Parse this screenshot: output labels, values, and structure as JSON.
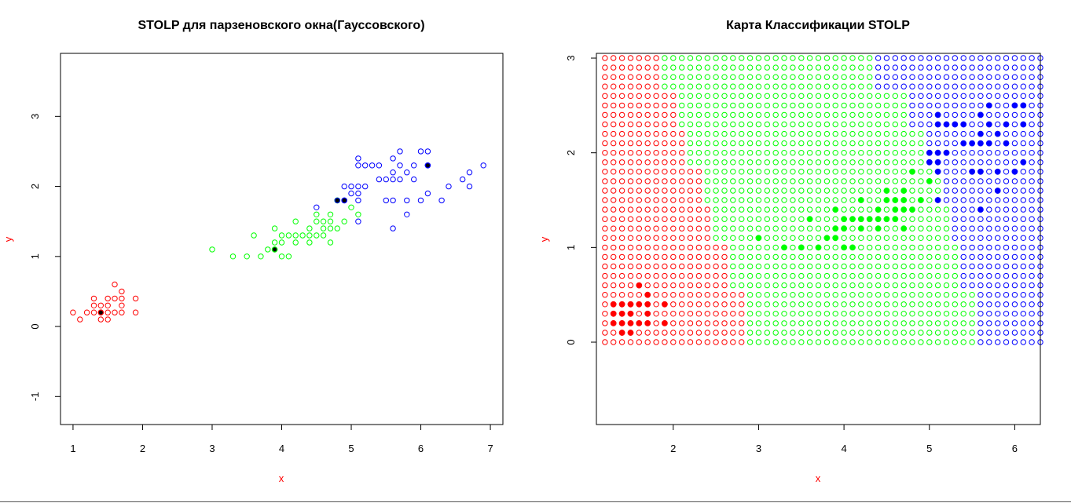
{
  "colors": {
    "setosa": "#ff0000",
    "versicolor": "#00ff00",
    "virginica": "#0000ff",
    "axis_label": "#ff0000"
  },
  "chart_data": [
    {
      "type": "scatter",
      "title": "STOLP для парзеновского окна(Гауссовского)",
      "xlabel": "x",
      "ylabel": "y",
      "xlim": [
        0.82,
        7.18
      ],
      "ylim": [
        -1.4,
        3.9
      ],
      "xticks": [
        1,
        2,
        3,
        4,
        5,
        6,
        7
      ],
      "yticks": [
        -1,
        0,
        1,
        2,
        3
      ],
      "series": [
        {
          "class": "setosa",
          "points": [
            [
              1.0,
              0.2
            ],
            [
              1.1,
              0.1
            ],
            [
              1.2,
              0.2
            ],
            [
              1.3,
              0.2
            ],
            [
              1.3,
              0.3
            ],
            [
              1.3,
              0.4
            ],
            [
              1.4,
              0.1
            ],
            [
              1.4,
              0.2
            ],
            [
              1.4,
              0.3
            ],
            [
              1.5,
              0.1
            ],
            [
              1.5,
              0.2
            ],
            [
              1.5,
              0.3
            ],
            [
              1.5,
              0.4
            ],
            [
              1.6,
              0.2
            ],
            [
              1.6,
              0.4
            ],
            [
              1.6,
              0.6
            ],
            [
              1.7,
              0.2
            ],
            [
              1.7,
              0.3
            ],
            [
              1.7,
              0.4
            ],
            [
              1.7,
              0.5
            ],
            [
              1.9,
              0.2
            ],
            [
              1.9,
              0.4
            ]
          ],
          "prototypes": [
            [
              1.4,
              0.2
            ]
          ]
        },
        {
          "class": "versicolor",
          "points": [
            [
              3.0,
              1.1
            ],
            [
              3.3,
              1.0
            ],
            [
              3.5,
              1.0
            ],
            [
              3.6,
              1.3
            ],
            [
              3.7,
              1.0
            ],
            [
              3.8,
              1.1
            ],
            [
              3.9,
              1.1
            ],
            [
              3.9,
              1.2
            ],
            [
              3.9,
              1.4
            ],
            [
              4.0,
              1.0
            ],
            [
              4.0,
              1.2
            ],
            [
              4.0,
              1.3
            ],
            [
              4.1,
              1.0
            ],
            [
              4.1,
              1.3
            ],
            [
              4.2,
              1.2
            ],
            [
              4.2,
              1.3
            ],
            [
              4.2,
              1.5
            ],
            [
              4.3,
              1.3
            ],
            [
              4.4,
              1.2
            ],
            [
              4.4,
              1.3
            ],
            [
              4.4,
              1.4
            ],
            [
              4.5,
              1.3
            ],
            [
              4.5,
              1.5
            ],
            [
              4.5,
              1.6
            ],
            [
              4.6,
              1.3
            ],
            [
              4.6,
              1.4
            ],
            [
              4.6,
              1.5
            ],
            [
              4.7,
              1.2
            ],
            [
              4.7,
              1.4
            ],
            [
              4.7,
              1.5
            ],
            [
              4.7,
              1.6
            ],
            [
              4.8,
              1.4
            ],
            [
              4.8,
              1.8
            ],
            [
              4.9,
              1.5
            ],
            [
              5.0,
              1.7
            ],
            [
              5.1,
              1.6
            ]
          ],
          "prototypes": [
            [
              3.9,
              1.1
            ],
            [
              4.8,
              1.8
            ]
          ]
        },
        {
          "class": "virginica",
          "points": [
            [
              4.5,
              1.7
            ],
            [
              4.8,
              1.8
            ],
            [
              4.9,
              1.8
            ],
            [
              4.9,
              2.0
            ],
            [
              5.0,
              1.9
            ],
            [
              5.0,
              2.0
            ],
            [
              5.1,
              1.5
            ],
            [
              5.1,
              1.8
            ],
            [
              5.1,
              1.9
            ],
            [
              5.1,
              2.0
            ],
            [
              5.1,
              2.3
            ],
            [
              5.1,
              2.4
            ],
            [
              5.2,
              2.0
            ],
            [
              5.2,
              2.3
            ],
            [
              5.3,
              2.3
            ],
            [
              5.4,
              2.1
            ],
            [
              5.4,
              2.3
            ],
            [
              5.5,
              1.8
            ],
            [
              5.5,
              2.1
            ],
            [
              5.6,
              1.4
            ],
            [
              5.6,
              1.8
            ],
            [
              5.6,
              2.1
            ],
            [
              5.6,
              2.2
            ],
            [
              5.6,
              2.4
            ],
            [
              5.7,
              2.1
            ],
            [
              5.7,
              2.3
            ],
            [
              5.7,
              2.5
            ],
            [
              5.8,
              1.6
            ],
            [
              5.8,
              1.8
            ],
            [
              5.8,
              2.2
            ],
            [
              5.9,
              2.1
            ],
            [
              5.9,
              2.3
            ],
            [
              6.0,
              1.8
            ],
            [
              6.0,
              2.5
            ],
            [
              6.1,
              1.9
            ],
            [
              6.1,
              2.3
            ],
            [
              6.1,
              2.5
            ],
            [
              6.3,
              1.8
            ],
            [
              6.4,
              2.0
            ],
            [
              6.6,
              2.1
            ],
            [
              6.7,
              2.0
            ],
            [
              6.7,
              2.2
            ],
            [
              6.9,
              2.3
            ]
          ],
          "prototypes": [
            [
              4.9,
              1.8
            ],
            [
              6.1,
              2.3
            ]
          ]
        }
      ]
    },
    {
      "type": "scatter",
      "title": "Карта Классификации STOLP",
      "xlabel": "x",
      "ylabel": "y",
      "xlim": [
        1.1,
        6.3
      ],
      "ylim": [
        -0.87,
        3.05
      ],
      "xticks": [
        2,
        3,
        4,
        5,
        6
      ],
      "yticks": [
        0,
        1,
        2,
        3
      ],
      "grid": {
        "x_from": 1.2,
        "x_to": 6.3,
        "y_from": 0.0,
        "y_to": 3.0,
        "step": 0.1
      },
      "class_boundaries": [
        {
          "y_max": 0.5,
          "setosa_below": 2.9,
          "virginica_from": 5.6
        },
        {
          "y_max": 1.0,
          "setosa_below": 2.7,
          "virginica_from": 5.4
        },
        {
          "y_max": 1.4,
          "setosa_below": 2.5,
          "virginica_from": 5.3
        },
        {
          "y_max": 1.8,
          "setosa_below": 2.4,
          "virginica_from": 5.2
        },
        {
          "y_max": 2.2,
          "setosa_below": 2.2,
          "virginica_from": 5.0
        },
        {
          "y_max": 2.6,
          "setosa_below": 2.1,
          "virginica_from": 4.8
        },
        {
          "y_max": 3.0,
          "setosa_below": 1.9,
          "virginica_from": 4.4
        }
      ],
      "training_points": [
        {
          "class": "setosa",
          "points": [
            [
              1.3,
              0.2
            ],
            [
              1.3,
              0.3
            ],
            [
              1.3,
              0.4
            ],
            [
              1.4,
              0.1
            ],
            [
              1.4,
              0.2
            ],
            [
              1.4,
              0.3
            ],
            [
              1.4,
              0.4
            ],
            [
              1.5,
              0.1
            ],
            [
              1.5,
              0.2
            ],
            [
              1.5,
              0.3
            ],
            [
              1.5,
              0.4
            ],
            [
              1.6,
              0.2
            ],
            [
              1.6,
              0.4
            ],
            [
              1.6,
              0.6
            ],
            [
              1.7,
              0.2
            ],
            [
              1.7,
              0.3
            ],
            [
              1.7,
              0.4
            ],
            [
              1.7,
              0.5
            ],
            [
              1.9,
              0.2
            ],
            [
              1.9,
              0.4
            ]
          ]
        },
        {
          "class": "versicolor",
          "points": [
            [
              3.0,
              1.1
            ],
            [
              3.3,
              1.0
            ],
            [
              3.5,
              1.0
            ],
            [
              3.6,
              1.3
            ],
            [
              3.7,
              1.0
            ],
            [
              3.8,
              1.1
            ],
            [
              3.9,
              1.1
            ],
            [
              3.9,
              1.2
            ],
            [
              3.9,
              1.4
            ],
            [
              4.0,
              1.0
            ],
            [
              4.0,
              1.2
            ],
            [
              4.0,
              1.3
            ],
            [
              4.1,
              1.0
            ],
            [
              4.1,
              1.3
            ],
            [
              4.2,
              1.2
            ],
            [
              4.2,
              1.3
            ],
            [
              4.2,
              1.5
            ],
            [
              4.3,
              1.3
            ],
            [
              4.4,
              1.2
            ],
            [
              4.4,
              1.3
            ],
            [
              4.4,
              1.4
            ],
            [
              4.5,
              1.3
            ],
            [
              4.5,
              1.5
            ],
            [
              4.5,
              1.6
            ],
            [
              4.6,
              1.3
            ],
            [
              4.6,
              1.4
            ],
            [
              4.6,
              1.5
            ],
            [
              4.7,
              1.2
            ],
            [
              4.7,
              1.4
            ],
            [
              4.7,
              1.5
            ],
            [
              4.7,
              1.6
            ],
            [
              4.8,
              1.4
            ],
            [
              4.8,
              1.8
            ],
            [
              4.9,
              1.5
            ],
            [
              5.0,
              1.7
            ]
          ]
        },
        {
          "class": "virginica",
          "points": [
            [
              5.0,
              1.9
            ],
            [
              5.0,
              2.0
            ],
            [
              5.1,
              1.5
            ],
            [
              5.1,
              1.8
            ],
            [
              5.1,
              1.9
            ],
            [
              5.1,
              2.0
            ],
            [
              5.1,
              2.3
            ],
            [
              5.1,
              2.4
            ],
            [
              5.2,
              2.0
            ],
            [
              5.2,
              2.3
            ],
            [
              5.3,
              2.3
            ],
            [
              5.4,
              2.1
            ],
            [
              5.4,
              2.3
            ],
            [
              5.5,
              1.8
            ],
            [
              5.5,
              2.1
            ],
            [
              5.6,
              1.4
            ],
            [
              5.6,
              1.8
            ],
            [
              5.6,
              2.1
            ],
            [
              5.6,
              2.2
            ],
            [
              5.6,
              2.4
            ],
            [
              5.7,
              2.1
            ],
            [
              5.7,
              2.3
            ],
            [
              5.7,
              2.5
            ],
            [
              5.8,
              1.6
            ],
            [
              5.8,
              1.8
            ],
            [
              5.8,
              2.2
            ],
            [
              5.9,
              2.1
            ],
            [
              5.9,
              2.3
            ],
            [
              6.0,
              1.8
            ],
            [
              6.0,
              2.5
            ],
            [
              6.1,
              1.9
            ],
            [
              6.1,
              2.3
            ],
            [
              6.1,
              2.5
            ]
          ]
        }
      ]
    }
  ]
}
